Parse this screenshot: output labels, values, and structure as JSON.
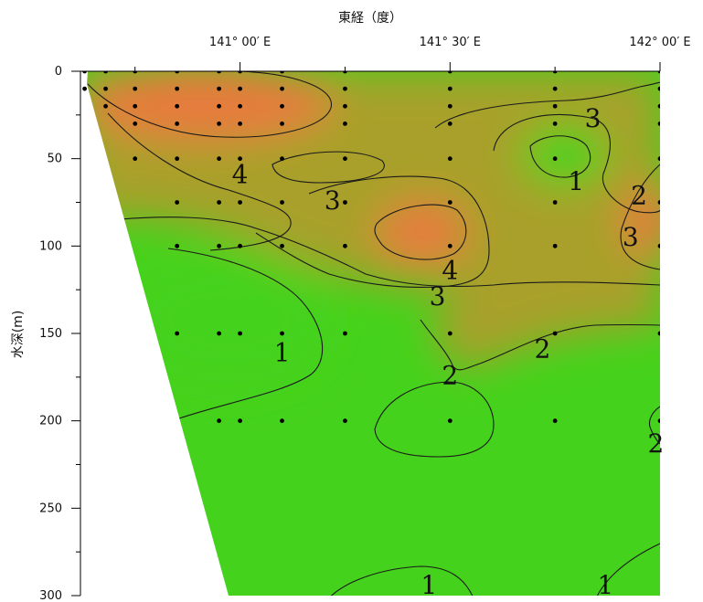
{
  "chart_data": {
    "type": "contour",
    "xlabel": "東経（度）",
    "ylabel": "水深(m)",
    "x_ticks": [
      {
        "value": 141.0,
        "label": "141° 00′ E"
      },
      {
        "value": 141.5,
        "label": "141° 30′ E"
      },
      {
        "value": 142.0,
        "label": "142° 00′ E"
      }
    ],
    "y_ticks": [
      0,
      50,
      100,
      150,
      200,
      250,
      300
    ],
    "xlim": [
      140.62,
      142.0
    ],
    "ylim": [
      0,
      300
    ],
    "y_inverted": true,
    "colors": {
      "high": "#e87a3c",
      "mid": "#a8a02c",
      "low": "#45d21c",
      "mask": "#ffffff"
    },
    "contour_labels": [
      {
        "text": "4",
        "x": 141.0,
        "y": 60
      },
      {
        "text": "3",
        "x": 141.22,
        "y": 75
      },
      {
        "text": "4",
        "x": 141.5,
        "y": 115
      },
      {
        "text": "3",
        "x": 141.47,
        "y": 130
      },
      {
        "text": "3",
        "x": 141.84,
        "y": 28
      },
      {
        "text": "1",
        "x": 141.8,
        "y": 64
      },
      {
        "text": "2",
        "x": 141.95,
        "y": 72
      },
      {
        "text": "3",
        "x": 141.93,
        "y": 96
      },
      {
        "text": "1",
        "x": 141.1,
        "y": 162
      },
      {
        "text": "2",
        "x": 141.5,
        "y": 175
      },
      {
        "text": "2",
        "x": 141.72,
        "y": 160
      },
      {
        "text": "2",
        "x": 141.99,
        "y": 214
      },
      {
        "text": "1",
        "x": 141.45,
        "y": 295
      },
      {
        "text": "1",
        "x": 141.87,
        "y": 295
      }
    ],
    "stations": [
      {
        "x": 140.63,
        "depths": [
          0,
          10
        ]
      },
      {
        "x": 140.68,
        "depths": [
          0,
          10,
          20
        ]
      },
      {
        "x": 140.75,
        "depths": [
          0,
          10,
          20,
          30,
          50
        ]
      },
      {
        "x": 140.85,
        "depths": [
          0,
          10,
          20,
          30,
          50,
          75,
          100,
          150
        ]
      },
      {
        "x": 140.95,
        "depths": [
          0,
          10,
          20,
          30,
          50,
          75,
          100,
          150,
          200
        ]
      },
      {
        "x": 141.0,
        "depths": [
          0,
          10,
          20,
          30,
          50,
          75,
          100,
          150,
          200
        ]
      },
      {
        "x": 141.1,
        "depths": [
          0,
          10,
          20,
          30,
          50,
          75,
          100,
          150,
          200
        ]
      },
      {
        "x": 141.25,
        "depths": [
          0,
          10,
          20,
          30,
          50,
          75,
          100,
          150,
          200
        ]
      },
      {
        "x": 141.5,
        "depths": [
          0,
          10,
          20,
          30,
          50,
          75,
          100,
          150,
          200
        ]
      },
      {
        "x": 141.75,
        "depths": [
          0,
          10,
          20,
          30,
          50,
          75,
          100,
          150,
          200
        ]
      },
      {
        "x": 142.0,
        "depths": [
          0,
          10,
          20,
          30,
          50,
          75,
          100,
          150,
          200
        ]
      }
    ]
  }
}
